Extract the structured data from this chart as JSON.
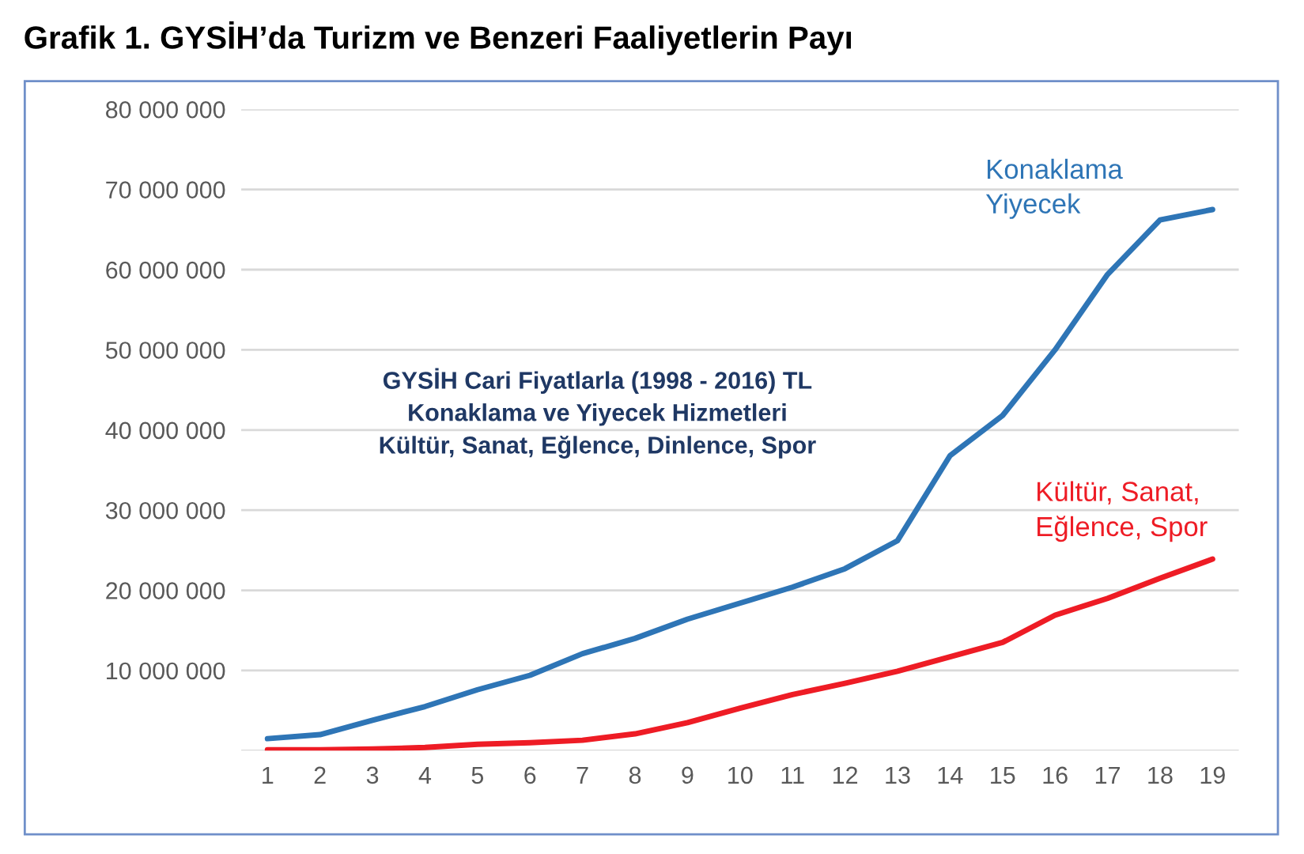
{
  "chart_data": {
    "type": "line",
    "title": "Grafik 1. GYSİH’da Turizm ve Benzeri Faaliyetlerin Payı",
    "categories": [
      "1",
      "2",
      "3",
      "4",
      "5",
      "6",
      "7",
      "8",
      "9",
      "10",
      "11",
      "12",
      "13",
      "14",
      "15",
      "16",
      "17",
      "18",
      "19"
    ],
    "series": [
      {
        "name": "Konaklama\nYiyecek",
        "color": "#2e75b6",
        "values": [
          1500000,
          2000000,
          3800000,
          5500000,
          7600000,
          9400000,
          12100000,
          14000000,
          16400000,
          18400000,
          20400000,
          22700000,
          26200000,
          36800000,
          41800000,
          50000000,
          59400000,
          66200000,
          67500000
        ]
      },
      {
        "name": "Kültür, Sanat,\nEğlence, Spor",
        "color": "#ee1c25",
        "values": [
          100000,
          100000,
          200000,
          400000,
          800000,
          1000000,
          1300000,
          2100000,
          3500000,
          5300000,
          7000000,
          8400000,
          9900000,
          11700000,
          13500000,
          16900000,
          19000000,
          21500000,
          23900000
        ]
      }
    ],
    "annotations": [
      "GYSİH Cari Fiyatlarla (1998 - 2016) TL\nKonaklama ve Yiyecek Hizmetleri\nKültür, Sanat, Eğlence, Dinlence, Spor"
    ],
    "ylim": [
      0,
      80000000
    ],
    "yticks": [
      {
        "value": 0,
        "label": null
      },
      {
        "value": 10000000,
        "label": "10 000 000"
      },
      {
        "value": 20000000,
        "label": "20 000 000"
      },
      {
        "value": 30000000,
        "label": "30 000 000"
      },
      {
        "value": 40000000,
        "label": "40 000 000"
      },
      {
        "value": 50000000,
        "label": "50 000 000"
      },
      {
        "value": 60000000,
        "label": "60 000 000"
      },
      {
        "value": 70000000,
        "label": "70 000 000"
      },
      {
        "value": 80000000,
        "label": "80 000 000"
      }
    ],
    "grid": "y",
    "legend": false,
    "marker": "none",
    "line_style": "solid"
  }
}
